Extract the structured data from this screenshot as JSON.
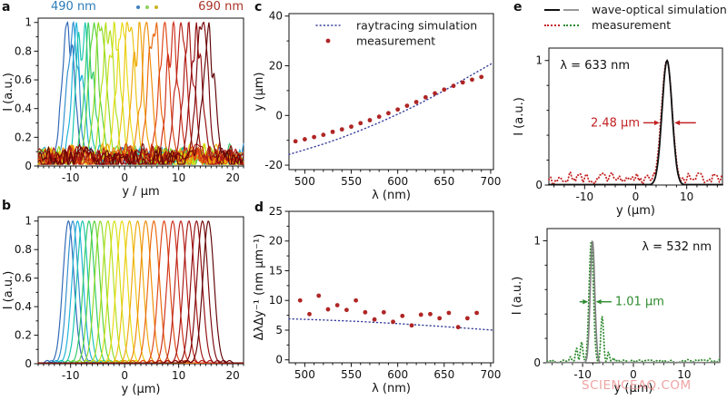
{
  "panel_labels": {
    "a": "a",
    "b": "b",
    "c": "c",
    "d": "d",
    "e": "e"
  },
  "header_a": {
    "left": "490 nm",
    "right": "690 nm",
    "left_color": "#2b7bb9",
    "right_color": "#a93226",
    "dot_colors": [
      "#3f7fc1",
      "#8fd05a",
      "#c9b51e"
    ]
  },
  "legend_e": {
    "sim_label": "wave-optical simulation",
    "meas_label": "measurement",
    "sim_colors": [
      "#111111",
      "#999999"
    ],
    "meas_colors": [
      "#c22222",
      "#2e8b2e"
    ]
  },
  "watermark": "SCIENCEAQ.COM",
  "colors": {
    "axis": "#111111",
    "measurement_red": "#b02525",
    "raytrace_blue": "#333a99",
    "sim_black": "#111111",
    "sim_gray": "#808080",
    "meas_red": "#c22222",
    "meas_green": "#2e8b2e"
  },
  "chart_data": [
    {
      "id": "a",
      "type": "line",
      "xlabel": "y / μm",
      "ylabel": "I (a.u.)",
      "xlim": [
        -16,
        22
      ],
      "ylim": [
        0,
        1.03
      ],
      "xticks": [
        -10,
        0,
        10,
        20
      ],
      "yticks": [
        0,
        0.2,
        0.4,
        0.6,
        0.8,
        1
      ],
      "xminor": 1,
      "yminor": 0.1,
      "series": [
        {
          "kind": "spectra",
          "wavelengths": [
            490,
            500,
            510,
            520,
            530,
            540,
            550,
            560,
            570,
            580,
            590,
            600,
            610,
            620,
            630,
            640,
            650,
            660,
            670,
            680,
            690
          ],
          "centers": [
            -10.4,
            -9.6,
            -8.7,
            -7.8,
            -6.6,
            -5.6,
            -4.5,
            -3.1,
            -1.9,
            -0.5,
            0.9,
            2.4,
            3.9,
            5.4,
            7.3,
            8.9,
            10.4,
            11.9,
            13.3,
            14.4,
            15.5
          ],
          "fwhm": 2.6,
          "noise": 0.32,
          "baseline_noise": 0.1,
          "seed": 7,
          "colors": [
            "#2d66b5",
            "#2f8ecf",
            "#1ab3d8",
            "#16c5ae",
            "#2fcb66",
            "#5ad237",
            "#8ad922",
            "#b0de18",
            "#d2e012",
            "#e7da0e",
            "#ecc30b",
            "#eea708",
            "#ef8a06",
            "#e9660b",
            "#dd4413",
            "#cd2d17",
            "#b92016",
            "#a51513",
            "#8f0c0e",
            "#790609",
            "#600204"
          ]
        }
      ]
    },
    {
      "id": "b",
      "type": "line",
      "xlabel": "y (μm)",
      "ylabel": "I (a.u.)",
      "xlim": [
        -16,
        22
      ],
      "ylim": [
        0,
        1.03
      ],
      "xticks": [
        -10,
        0,
        10,
        20
      ],
      "yticks": [
        0,
        0.2,
        0.4,
        0.6,
        0.8,
        1
      ],
      "xminor": 1,
      "yminor": 0.1,
      "series": [
        {
          "kind": "spectra",
          "wavelengths": [
            490,
            500,
            510,
            520,
            530,
            540,
            550,
            560,
            570,
            580,
            590,
            600,
            610,
            620,
            630,
            640,
            650,
            660,
            670,
            680,
            690
          ],
          "centers": [
            -10.4,
            -9.6,
            -8.7,
            -7.8,
            -6.6,
            -5.6,
            -4.5,
            -3.1,
            -1.9,
            -0.5,
            0.9,
            2.4,
            3.9,
            5.4,
            7.3,
            8.9,
            10.4,
            11.9,
            13.3,
            14.4,
            15.5
          ],
          "fwhm": 2.4,
          "noise": 0,
          "sidelobe": 0.05,
          "seed": 3,
          "colors": [
            "#2d66b5",
            "#2f8ecf",
            "#1ab3d8",
            "#16c5ae",
            "#2fcb66",
            "#5ad237",
            "#8ad922",
            "#b0de18",
            "#d2e012",
            "#e7da0e",
            "#ecc30b",
            "#eea708",
            "#ef8a06",
            "#e9660b",
            "#dd4413",
            "#cd2d17",
            "#b92016",
            "#a51513",
            "#8f0c0e",
            "#790609",
            "#600204"
          ]
        }
      ]
    },
    {
      "id": "c",
      "type": "scatter",
      "xlabel": "λ (nm)",
      "ylabel": "y (μm)",
      "xlim": [
        483,
        703
      ],
      "ylim": [
        -21.8,
        41
      ],
      "xticks": [
        500,
        550,
        600,
        650,
        700
      ],
      "yticks": [
        -20,
        0,
        20,
        40
      ],
      "xminor": 10,
      "yminor": 10,
      "legend": {
        "items": [
          {
            "kind": "dotline",
            "color": "#333a99",
            "label": "raytracing simulation"
          },
          {
            "kind": "dot",
            "color": "#b02525",
            "label": "measurement"
          }
        ]
      },
      "series": [
        {
          "kind": "line",
          "color": "#333a99",
          "dash": "1 3.2",
          "width": 1.4,
          "points": [
            [
              483,
              -15.7
            ],
            [
              500,
              -13.8
            ],
            [
              520,
              -11.5
            ],
            [
              540,
              -8.9
            ],
            [
              560,
              -6.0
            ],
            [
              580,
              -2.9
            ],
            [
              600,
              0.5
            ],
            [
              620,
              4.1
            ],
            [
              640,
              8.0
            ],
            [
              660,
              12.1
            ],
            [
              680,
              16.4
            ],
            [
              703,
              21.3
            ]
          ]
        },
        {
          "kind": "scatter",
          "color": "#b02525",
          "r": 2.4,
          "x": [
            490,
            500,
            510,
            520,
            530,
            540,
            550,
            560,
            570,
            580,
            590,
            600,
            610,
            620,
            630,
            640,
            650,
            660,
            670,
            680,
            690
          ],
          "y": [
            -10.4,
            -9.6,
            -8.7,
            -7.8,
            -6.6,
            -5.6,
            -4.5,
            -3.1,
            -1.9,
            -0.5,
            0.9,
            2.4,
            3.9,
            5.4,
            7.3,
            8.9,
            10.4,
            11.9,
            13.3,
            14.4,
            15.5
          ]
        }
      ]
    },
    {
      "id": "d",
      "type": "scatter",
      "xlabel": "λ (nm)",
      "ylabel": "ΔλΔy⁻¹ (nm μm⁻¹)",
      "xlim": [
        483,
        703
      ],
      "ylim": [
        -0.5,
        25
      ],
      "xticks": [
        500,
        550,
        600,
        650,
        700
      ],
      "yticks": [
        0,
        5,
        10,
        15,
        20,
        25
      ],
      "xminor": 10,
      "yminor": 2.5,
      "series": [
        {
          "kind": "line",
          "color": "#333a99",
          "dash": "1 3.2",
          "width": 1.4,
          "points": [
            [
              483,
              6.9
            ],
            [
              520,
              6.7
            ],
            [
              560,
              6.45
            ],
            [
              600,
              6.1
            ],
            [
              640,
              5.7
            ],
            [
              680,
              5.25
            ],
            [
              703,
              5.0
            ]
          ]
        },
        {
          "kind": "scatter",
          "color": "#b02525",
          "r": 2.4,
          "x": [
            495,
            505,
            515,
            525,
            535,
            545,
            555,
            565,
            575,
            585,
            595,
            605,
            615,
            625,
            635,
            645,
            655,
            665,
            675,
            685
          ],
          "y": [
            10.0,
            7.7,
            10.8,
            8.5,
            9.2,
            8.4,
            10.0,
            8.0,
            6.8,
            8.0,
            6.4,
            7.4,
            5.8,
            7.6,
            7.7,
            7.0,
            7.9,
            5.5,
            7.0,
            7.9
          ]
        }
      ]
    },
    {
      "id": "e1",
      "type": "line",
      "xlabel": "y (μm)",
      "ylabel": "I (a.u.)",
      "xlim": [
        -17,
        17
      ],
      "ylim": [
        0,
        1.1
      ],
      "xticks": [
        -10,
        0,
        10
      ],
      "yticks": [
        0,
        1
      ],
      "xminor": 2,
      "yminor": 0.2,
      "wavelength_label": "λ = 633 nm",
      "fwhm_label": "2.48 μm",
      "fwhm_um": 2.48,
      "annotations": [
        {
          "kind": "text",
          "text": "λ = 633 nm",
          "x": -14.8,
          "y": 0.96,
          "anchor": "start",
          "color": "#111111",
          "size": 13
        },
        {
          "kind": "text",
          "text": "2.48 μm",
          "x": 0.8,
          "y": 0.5,
          "anchor": "end",
          "color": "#c22222",
          "size": 13
        },
        {
          "kind": "arrow",
          "from": [
            1.5,
            0.5
          ],
          "to": [
            4.7,
            0.5
          ],
          "color": "#c22222"
        },
        {
          "kind": "arrow",
          "from": [
            11.8,
            0.5
          ],
          "to": [
            7.6,
            0.5
          ],
          "color": "#c22222"
        }
      ],
      "series": [
        {
          "kind": "peak",
          "center": 6.1,
          "fwhm": 2.48,
          "color": "#c22222",
          "dash": "0.5 3",
          "width": 1.8,
          "baseline": 0.05,
          "noise": 0.035,
          "seed": 11
        },
        {
          "kind": "peak",
          "center": 6.15,
          "fwhm": 2.3,
          "color": "#111111",
          "width": 1.8,
          "baseline": 0.004,
          "noise": 0,
          "seed": 1
        }
      ]
    },
    {
      "id": "e2",
      "type": "line",
      "xlabel": "y (μm)",
      "ylabel": "I (a.u.)",
      "xlim": [
        -17,
        17
      ],
      "ylim": [
        0,
        1.1
      ],
      "xticks": [
        -10,
        0,
        10
      ],
      "yticks": [
        0,
        1
      ],
      "xminor": 2,
      "yminor": 0.2,
      "wavelength_label": "λ = 532 nm",
      "fwhm_label": "1.01 μm",
      "fwhm_um": 1.01,
      "annotations": [
        {
          "kind": "text",
          "text": "λ = 532 nm",
          "x": 15.4,
          "y": 0.95,
          "anchor": "end",
          "color": "#111111",
          "size": 13
        },
        {
          "kind": "text",
          "text": "1.01 μm",
          "x": -3.6,
          "y": 0.5,
          "anchor": "start",
          "color": "#2e8b2e",
          "size": 13
        },
        {
          "kind": "arrow",
          "from": [
            -10.6,
            0.5
          ],
          "to": [
            -8.9,
            0.5
          ],
          "color": "#2e8b2e"
        },
        {
          "kind": "arrow",
          "from": [
            -4.3,
            0.5
          ],
          "to": [
            -7.4,
            0.5
          ],
          "color": "#2e8b2e"
        }
      ],
      "series": [
        {
          "kind": "peak",
          "center": -8.3,
          "fwhm": 1.01,
          "color": "#2e8b2e",
          "dash": "0.5 3",
          "width": 1.8,
          "baseline": 0.015,
          "noise": 0.012,
          "seed": 21,
          "sidelobes": [
            [
              -12.4,
              0.05,
              0.55
            ],
            [
              -11.2,
              0.12,
              0.55
            ],
            [
              -10.2,
              0.17,
              0.6
            ],
            [
              -6.15,
              0.38,
              0.65
            ],
            [
              -4.9,
              0.09,
              0.5
            ],
            [
              -3.9,
              0.04,
              0.5
            ]
          ]
        },
        {
          "kind": "peak",
          "center": -8.05,
          "fwhm": 1.05,
          "color": "#808080",
          "width": 1.6,
          "baseline": 0.002,
          "noise": 0,
          "seed": 1
        }
      ]
    }
  ]
}
